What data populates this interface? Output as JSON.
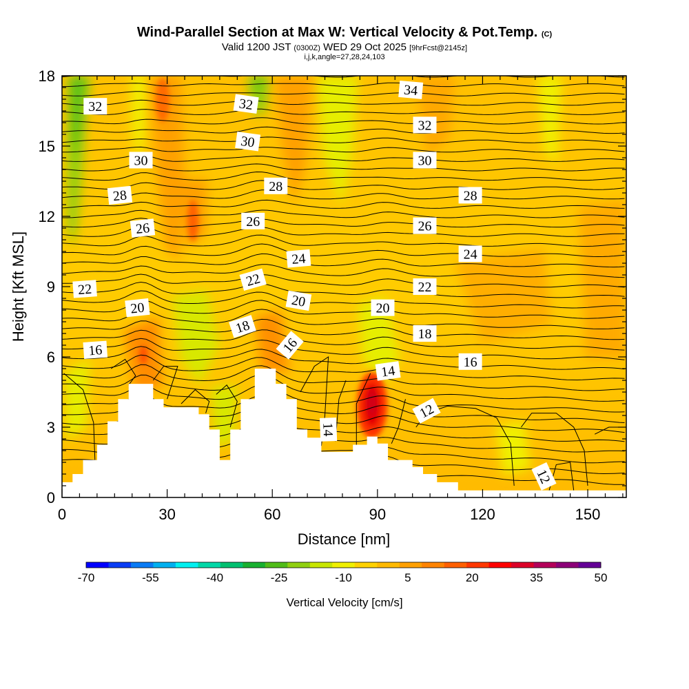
{
  "title": {
    "main": "Wind-Parallel Section at Max W: Vertical Velocity & Pot.Temp.",
    "copyright": "(C)",
    "valid_prefix": "Valid 1200 JST",
    "zulu": "(0300Z)",
    "valid_date": "WED 29 Oct 2025",
    "forecast": "[9hrFcst@2145z]",
    "indices": "i,j,k,angle=27,28,24,103"
  },
  "chart_data": {
    "type": "contour",
    "xlabel": "Distance [nm]",
    "ylabel": "Height [Kft MSL]",
    "xlim": [
      0,
      161
    ],
    "ylim": [
      0,
      18
    ],
    "x_ticks": [
      "0",
      "30",
      "60",
      "90",
      "120",
      "150"
    ],
    "x_tick_values": [
      0,
      30,
      60,
      90,
      120,
      150
    ],
    "y_ticks": [
      "0",
      "3",
      "6",
      "9",
      "12",
      "15",
      "18"
    ],
    "y_tick_values": [
      0,
      3,
      6,
      9,
      12,
      15,
      18
    ],
    "terrain": [
      [
        0,
        0.65
      ],
      [
        3,
        0.65
      ],
      [
        3,
        1.0
      ],
      [
        6,
        1.0
      ],
      [
        6,
        1.6
      ],
      [
        10,
        1.6
      ],
      [
        10,
        2.25
      ],
      [
        13,
        2.25
      ],
      [
        13,
        3.25
      ],
      [
        16,
        3.25
      ],
      [
        16,
        4.2
      ],
      [
        19,
        4.2
      ],
      [
        19,
        4.85
      ],
      [
        26,
        4.85
      ],
      [
        26,
        4.2
      ],
      [
        29,
        4.2
      ],
      [
        29,
        3.85
      ],
      [
        39,
        3.85
      ],
      [
        39,
        3.55
      ],
      [
        42,
        3.55
      ],
      [
        42,
        2.9
      ],
      [
        45,
        2.9
      ],
      [
        45,
        1.6
      ],
      [
        48,
        1.6
      ],
      [
        48,
        2.9
      ],
      [
        51,
        2.9
      ],
      [
        51,
        4.2
      ],
      [
        55,
        4.2
      ],
      [
        55,
        5.5
      ],
      [
        61,
        5.5
      ],
      [
        61,
        4.85
      ],
      [
        64,
        4.85
      ],
      [
        64,
        4.2
      ],
      [
        67,
        4.2
      ],
      [
        67,
        2.9
      ],
      [
        70,
        2.9
      ],
      [
        70,
        2.55
      ],
      [
        74,
        2.55
      ],
      [
        74,
        1.95
      ],
      [
        83,
        1.95
      ],
      [
        83,
        2.25
      ],
      [
        87,
        2.25
      ],
      [
        87,
        2.6
      ],
      [
        90,
        2.6
      ],
      [
        90,
        2.3
      ],
      [
        93,
        2.3
      ],
      [
        93,
        1.6
      ],
      [
        100,
        1.6
      ],
      [
        100,
        1.3
      ],
      [
        103,
        1.3
      ],
      [
        103,
        1.0
      ],
      [
        107,
        1.0
      ],
      [
        107,
        0.65
      ],
      [
        113,
        0.65
      ],
      [
        113,
        0.3
      ],
      [
        161,
        0.3
      ],
      [
        161,
        0
      ],
      [
        0,
        0
      ]
    ],
    "contour_labels": [
      {
        "text": "32",
        "x": 9.5,
        "y": 16.7,
        "angle": 0
      },
      {
        "text": "32",
        "x": 52.5,
        "y": 16.8,
        "angle": 8
      },
      {
        "text": "34",
        "x": 99.5,
        "y": 17.4,
        "angle": 5
      },
      {
        "text": "32",
        "x": 103.5,
        "y": 15.9,
        "angle": 0
      },
      {
        "text": "30",
        "x": 22.5,
        "y": 14.4,
        "angle": 0
      },
      {
        "text": "30",
        "x": 53.0,
        "y": 15.2,
        "angle": 8
      },
      {
        "text": "30",
        "x": 103.5,
        "y": 14.4,
        "angle": 0
      },
      {
        "text": "28",
        "x": 16.5,
        "y": 12.9,
        "angle": -6
      },
      {
        "text": "28",
        "x": 61.0,
        "y": 13.3,
        "angle": 0
      },
      {
        "text": "28",
        "x": 116.5,
        "y": 12.9,
        "angle": 0
      },
      {
        "text": "26",
        "x": 23.0,
        "y": 11.5,
        "angle": -6
      },
      {
        "text": "26",
        "x": 54.5,
        "y": 11.8,
        "angle": 0
      },
      {
        "text": "26",
        "x": 103.5,
        "y": 11.6,
        "angle": 0
      },
      {
        "text": "24",
        "x": 67.5,
        "y": 10.2,
        "angle": -5
      },
      {
        "text": "24",
        "x": 116.5,
        "y": 10.4,
        "angle": 0
      },
      {
        "text": "22",
        "x": 6.5,
        "y": 8.9,
        "angle": -4
      },
      {
        "text": "22",
        "x": 54.5,
        "y": 9.3,
        "angle": -16
      },
      {
        "text": "22",
        "x": 103.5,
        "y": 9.0,
        "angle": 0
      },
      {
        "text": "20",
        "x": 21.5,
        "y": 8.1,
        "angle": -6
      },
      {
        "text": "20",
        "x": 67.5,
        "y": 8.4,
        "angle": 10
      },
      {
        "text": "20",
        "x": 91.5,
        "y": 8.1,
        "angle": 0
      },
      {
        "text": "18",
        "x": 51.5,
        "y": 7.3,
        "angle": -18
      },
      {
        "text": "18",
        "x": 103.5,
        "y": 7.0,
        "angle": 0
      },
      {
        "text": "16",
        "x": 9.5,
        "y": 6.3,
        "angle": -4
      },
      {
        "text": "16",
        "x": 65.0,
        "y": 6.5,
        "angle": -50
      },
      {
        "text": "16",
        "x": 116.5,
        "y": 5.8,
        "angle": 0
      },
      {
        "text": "14",
        "x": 93.0,
        "y": 5.4,
        "angle": -8
      },
      {
        "text": "14",
        "x": 76.0,
        "y": 2.9,
        "angle": 88
      },
      {
        "text": "12",
        "x": 104.0,
        "y": 3.7,
        "angle": -28
      },
      {
        "text": "12",
        "x": 137.5,
        "y": 0.9,
        "angle": 65
      }
    ],
    "colorbar": {
      "label": "Vertical Velocity [cm/s]",
      "tick_labels": [
        "-70",
        "-55",
        "-40",
        "-25",
        "-10",
        "5",
        "20",
        "35",
        "50"
      ],
      "colors": [
        "#0000ff",
        "#0a3df5",
        "#0a7bf5",
        "#00b0f0",
        "#00f0f0",
        "#00d8a8",
        "#00c070",
        "#18b030",
        "#50bc18",
        "#90d010",
        "#c8e600",
        "#f0f000",
        "#ffd200",
        "#ffba00",
        "#ffa000",
        "#ff8400",
        "#ff6000",
        "#ff3800",
        "#ff0000",
        "#dc0028",
        "#b4005a",
        "#8c0078",
        "#640096"
      ]
    }
  }
}
